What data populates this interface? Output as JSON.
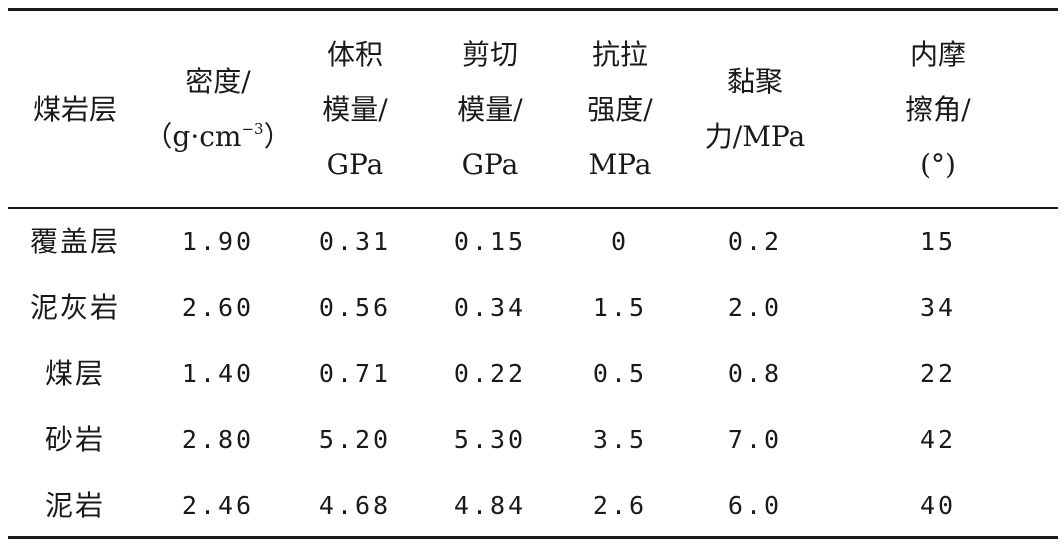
{
  "table": {
    "headers": [
      {
        "lines": [
          "煤岩层"
        ]
      },
      {
        "lines": [
          "密度/",
          "（g·cm",
          "−3",
          "）"
        ]
      },
      {
        "lines": [
          "体积",
          "模量/",
          "GPa"
        ]
      },
      {
        "lines": [
          "剪切",
          "模量/",
          "GPa"
        ]
      },
      {
        "lines": [
          "抗拉",
          "强度/",
          "MPa"
        ]
      },
      {
        "lines": [
          "黏聚",
          "力/MPa"
        ]
      },
      {
        "lines": [
          "内摩",
          "擦角/",
          "(°)"
        ]
      }
    ],
    "rows": [
      [
        "覆盖层",
        "1.90",
        "0.31",
        "0.15",
        "0",
        "0.2",
        "15"
      ],
      [
        "泥灰岩",
        "2.60",
        "0.56",
        "0.34",
        "1.5",
        "2.0",
        "34"
      ],
      [
        "煤层",
        "1.40",
        "0.71",
        "0.22",
        "0.5",
        "0.8",
        "22"
      ],
      [
        "砂岩",
        "2.80",
        "5.20",
        "5.30",
        "3.5",
        "7.0",
        "42"
      ],
      [
        "泥岩",
        "2.46",
        "4.68",
        "4.84",
        "2.6",
        "6.0",
        "40"
      ]
    ]
  }
}
